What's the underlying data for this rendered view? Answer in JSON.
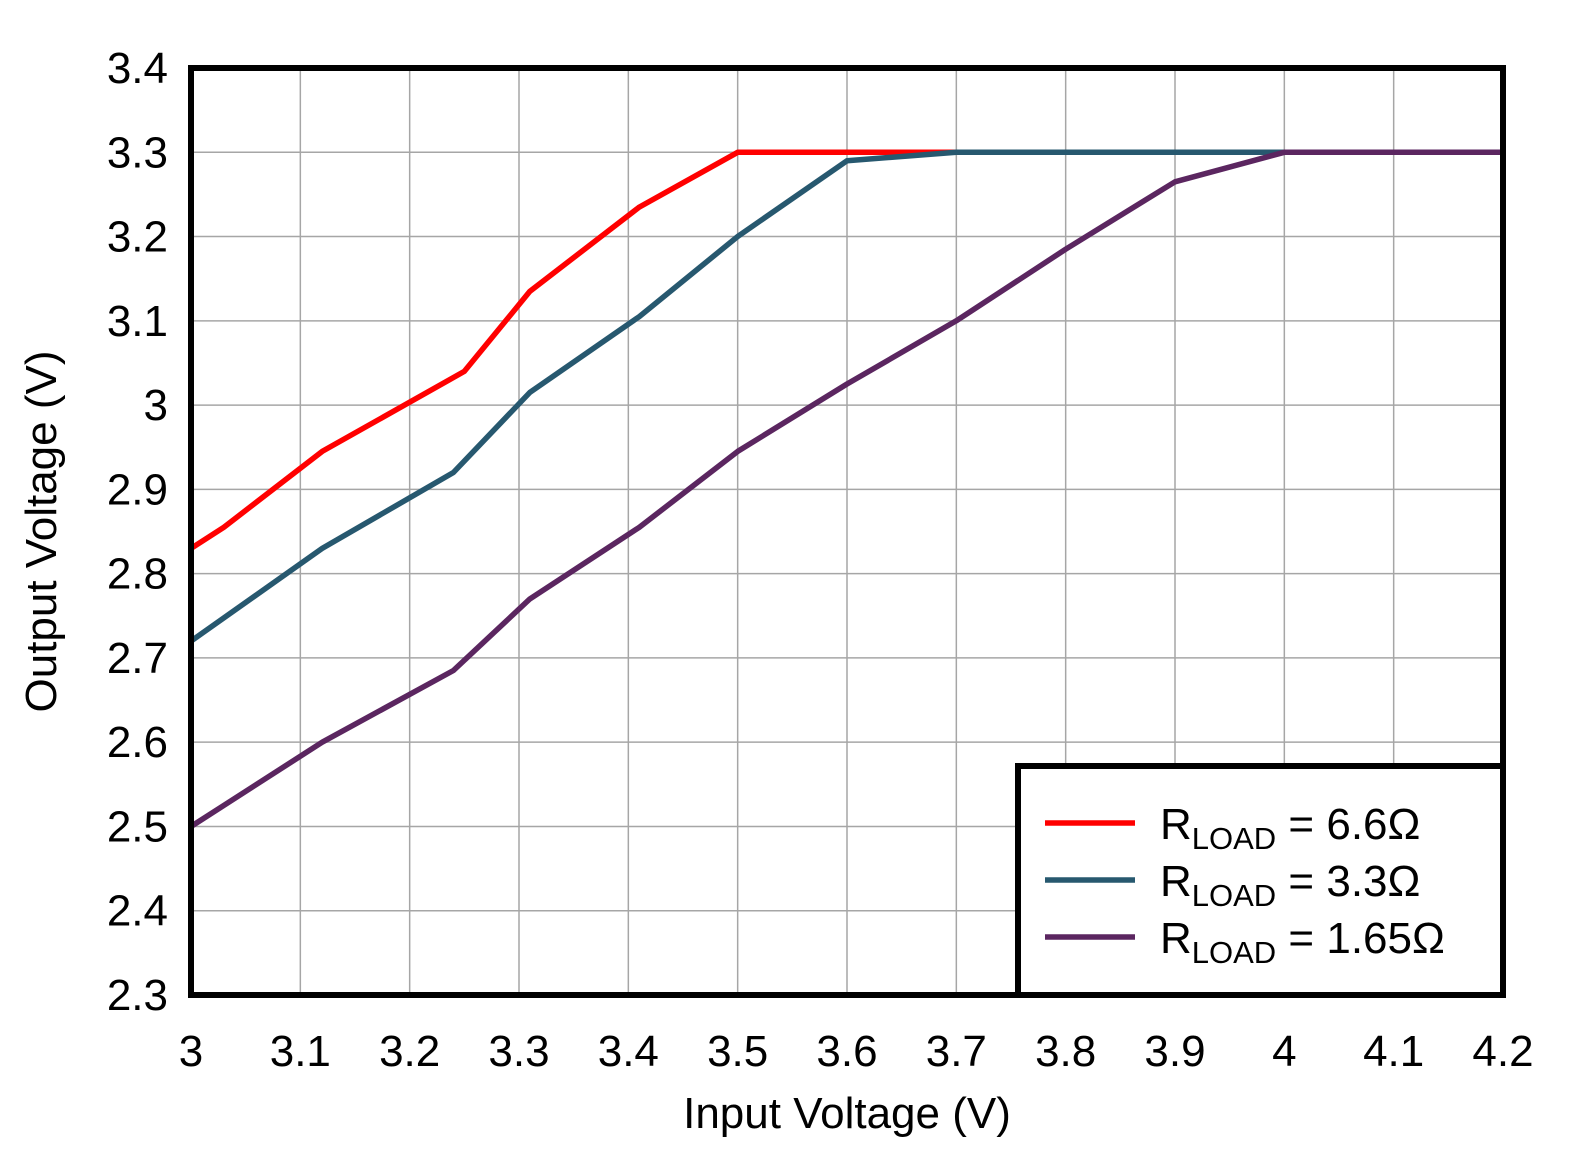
{
  "chart_data": {
    "type": "line",
    "title": "",
    "xlabel": "Input Voltage (V)",
    "ylabel": "Output Voltage (V)",
    "xlim": [
      3,
      4.2
    ],
    "ylim": [
      2.3,
      3.4
    ],
    "grid": true,
    "legend_position": "bottom-right",
    "xticks": [
      "3",
      "3.1",
      "3.2",
      "3.3",
      "3.4",
      "3.5",
      "3.6",
      "3.7",
      "3.8",
      "3.9",
      "4",
      "4.1",
      "4.2"
    ],
    "yticks": [
      "2.3",
      "2.4",
      "2.5",
      "2.6",
      "2.7",
      "2.8",
      "2.9",
      "3",
      "3.1",
      "3.2",
      "3.3",
      "3.4"
    ],
    "series": [
      {
        "name": "R_LOAD = 6.6Ω",
        "label_main": "R",
        "label_sub": "LOAD",
        "label_value": " = 6.6Ω",
        "color": "#ff0000",
        "x": [
          3.0,
          3.03,
          3.12,
          3.25,
          3.31,
          3.41,
          3.5,
          3.7,
          4.2
        ],
        "y": [
          2.83,
          2.855,
          2.945,
          3.04,
          3.135,
          3.235,
          3.3,
          3.3,
          3.3
        ]
      },
      {
        "name": "R_LOAD = 3.3Ω",
        "label_main": "R",
        "label_sub": "LOAD",
        "label_value": " = 3.3Ω",
        "color": "#27586f",
        "x": [
          3.0,
          3.12,
          3.24,
          3.31,
          3.41,
          3.5,
          3.6,
          3.7,
          3.9,
          4.2
        ],
        "y": [
          2.72,
          2.83,
          2.92,
          3.015,
          3.105,
          3.2,
          3.29,
          3.3,
          3.3,
          3.3
        ]
      },
      {
        "name": "R_LOAD = 1.65Ω",
        "label_main": "R",
        "label_sub": "LOAD",
        "label_value": " = 1.65Ω",
        "color": "#5b2660",
        "x": [
          3.0,
          3.03,
          3.12,
          3.24,
          3.31,
          3.41,
          3.5,
          3.6,
          3.7,
          3.8,
          3.9,
          4.0,
          4.2
        ],
        "y": [
          2.5,
          2.525,
          2.6,
          2.685,
          2.77,
          2.855,
          2.945,
          3.025,
          3.1,
          3.185,
          3.265,
          3.3,
          3.3
        ]
      }
    ]
  }
}
